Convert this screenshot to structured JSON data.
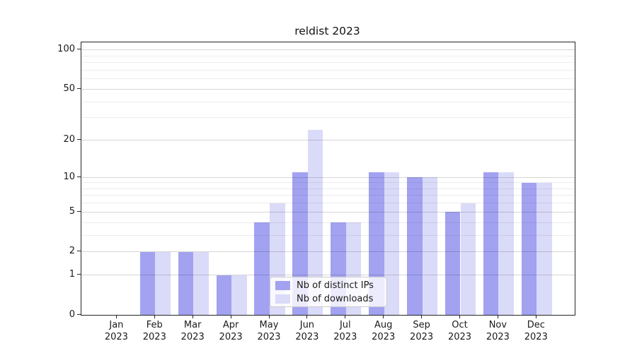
{
  "chart_data": {
    "type": "bar",
    "title": "reldist 2023",
    "categories": [
      "Jan",
      "Feb",
      "Mar",
      "Apr",
      "May",
      "Jun",
      "Jul",
      "Aug",
      "Sep",
      "Oct",
      "Nov",
      "Dec"
    ],
    "x_sublabel": "2023",
    "series": [
      {
        "name": "Nb of distinct IPs",
        "color": "#a2a2f1",
        "values": [
          0,
          2,
          2,
          1,
          4,
          11,
          4,
          11,
          10,
          5,
          11,
          9
        ]
      },
      {
        "name": "Nb of downloads",
        "color": "#dadaf9",
        "values": [
          0,
          2,
          2,
          1,
          6,
          24,
          4,
          11,
          10,
          6,
          11,
          9
        ]
      }
    ],
    "y_axis": {
      "scale": "log1p",
      "major_ticks": [
        0,
        1,
        2,
        5,
        10,
        20,
        50,
        100
      ],
      "minor_gridlines": [
        3,
        4,
        6,
        7,
        8,
        9,
        30,
        40,
        60,
        70,
        80,
        90
      ],
      "range": [
        0,
        114.3
      ]
    },
    "grid": true,
    "legend": {
      "position": "lower center",
      "labels": [
        "Nb of distinct IPs",
        "Nb of downloads"
      ]
    }
  }
}
